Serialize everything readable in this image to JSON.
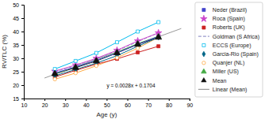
{
  "chart_data": {
    "type": "line",
    "xlabel": "Age (y)",
    "ylabel": "RV/TLC (%)",
    "xlim": [
      10,
      90
    ],
    "ylim": [
      15,
      50
    ],
    "xticks": [
      10,
      20,
      30,
      40,
      50,
      60,
      70,
      80,
      90
    ],
    "yticks": [
      15,
      20,
      25,
      30,
      35,
      40,
      45,
      50
    ],
    "grid": false,
    "legend": "right",
    "annotations": [
      "y = 0.0028x + 0.1704"
    ],
    "x": [
      25,
      35,
      45,
      55,
      65,
      75
    ],
    "series": [
      {
        "name": "Neder (Brazil)",
        "color": "#4444cc",
        "marker": "square",
        "line_style": "solid",
        "values": [
          24.5,
          26.8,
          29.2,
          32.0,
          35.2,
          38.2
        ]
      },
      {
        "name": "Roca (Spain)",
        "color": "#cc44cc",
        "marker": "star",
        "line_style": "solid",
        "values": [
          25.2,
          27.5,
          30.0,
          33.0,
          36.5,
          39.5
        ]
      },
      {
        "name": "Roberts (UK)",
        "color": "#cc2222",
        "marker": "square",
        "line_style": "solid",
        "values": [
          23.0,
          25.5,
          27.8,
          29.8,
          32.2,
          34.5
        ]
      },
      {
        "name": "Goldman (S Africa)",
        "color": "#9999cc",
        "marker": "none",
        "line_style": "dashed",
        "values": [
          25.0,
          27.2,
          29.8,
          32.8,
          36.2,
          39.5
        ]
      },
      {
        "name": "ECCS (Europe)",
        "color": "#00bbee",
        "marker": "square-open",
        "line_style": "solid",
        "values": [
          26.0,
          29.0,
          32.0,
          36.0,
          40.0,
          43.5
        ]
      },
      {
        "name": "Garcia-Rio (Spain)",
        "color": "#006688",
        "marker": "diamond",
        "line_style": "solid",
        "values": [
          23.5,
          25.8,
          28.2,
          31.0,
          34.5,
          37.8
        ]
      },
      {
        "name": "Quanjer (NL)",
        "color": "#ffaa44",
        "marker": "circle-open",
        "line_style": "solid",
        "values": [
          22.2,
          24.5,
          27.2,
          30.2,
          33.8,
          37.8
        ]
      },
      {
        "name": "Miller (US)",
        "color": "#44aa44",
        "marker": "triangle",
        "line_style": "solid",
        "values": [
          24.2,
          26.8,
          29.2,
          32.2,
          35.5,
          38.2
        ]
      },
      {
        "name": "Mean",
        "color": "#111111",
        "marker": "triangle",
        "line_style": "solid",
        "values": [
          24.2,
          26.5,
          29.0,
          32.0,
          35.2,
          37.8
        ]
      },
      {
        "name": "Linear (Mean)",
        "color": "#999999",
        "marker": "none",
        "line_style": "solid",
        "x": [
          20,
          86
        ],
        "values": [
          22.64,
          41.12
        ]
      }
    ]
  }
}
